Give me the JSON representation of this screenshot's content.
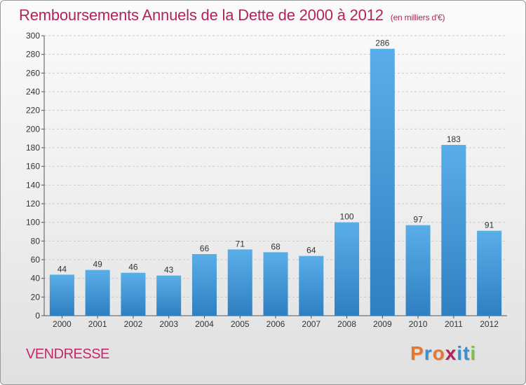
{
  "header": {
    "title": "Remboursements Annuels de la Dette de 2000 à 2012",
    "subtitle": "(en milliers d'€)"
  },
  "footer": {
    "place": "VENDRESSE",
    "logo_text": "Proxiti",
    "logo_colors": [
      "#e8772e",
      "#3a8fd0",
      "#e8772e",
      "#b0245a",
      "#3a8fd0",
      "#3a8fd0",
      "#7cc242"
    ]
  },
  "chart_data": {
    "type": "bar",
    "title": "Remboursements Annuels de la Dette de 2000 à 2012",
    "categories": [
      "2000",
      "2001",
      "2002",
      "2003",
      "2004",
      "2005",
      "2006",
      "2007",
      "2008",
      "2009",
      "2010",
      "2011",
      "2012"
    ],
    "values": [
      44,
      49,
      46,
      43,
      66,
      71,
      68,
      64,
      100,
      286,
      97,
      183,
      91
    ],
    "ylim": [
      0,
      300
    ],
    "yticks": [
      0,
      20,
      40,
      60,
      80,
      100,
      120,
      140,
      160,
      180,
      200,
      220,
      240,
      260,
      280,
      300
    ],
    "grid": true,
    "bar_color_top": "#5aaee8",
    "bar_color_bottom": "#2f7fc1"
  }
}
